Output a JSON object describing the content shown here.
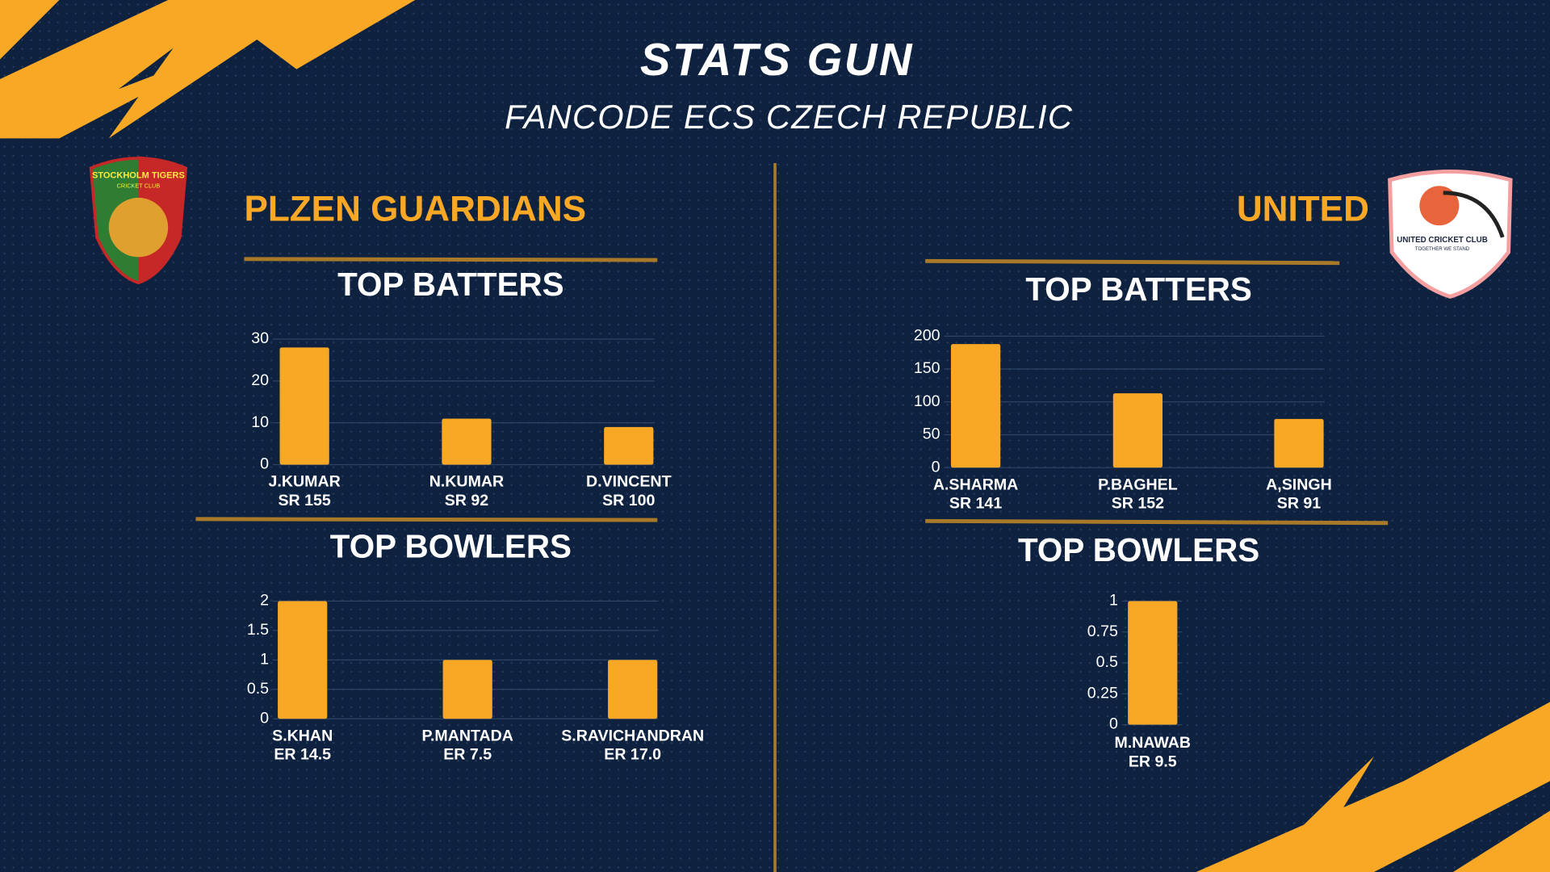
{
  "title": "STATS GUN",
  "subtitle": "FANCODE ECS CZECH REPUBLIC",
  "teams": [
    {
      "name": "PLZEN GUARDIANS",
      "logo_text": [
        "STOCKHOLM TIGERS",
        "CRICKET CLUB"
      ]
    },
    {
      "name": "UNITED",
      "logo_text": [
        "UNITED CRICKET CLUB",
        "TOGETHER WE STAND"
      ]
    }
  ],
  "chart_data": [
    {
      "type": "bar",
      "title": "TOP BATTERS",
      "categories": [
        "J.KUMAR",
        "N.KUMAR",
        "D.VINCENT"
      ],
      "category_notes": [
        "SR 155",
        "SR 92",
        "SR 100"
      ],
      "values": [
        28,
        11,
        9
      ],
      "color": "#f9a825",
      "ylim": [
        0,
        30
      ],
      "yticks": [
        0,
        10,
        20,
        30
      ],
      "grid": true
    },
    {
      "type": "bar",
      "title": "TOP BOWLERS",
      "categories": [
        "S.KHAN",
        "P.MANTADA",
        "S.RAVICHANDRAN"
      ],
      "category_notes": [
        "ER 14.5",
        "ER 7.5",
        "ER 17.0"
      ],
      "values": [
        2,
        1,
        1
      ],
      "color": "#f9a825",
      "ylim": [
        0,
        2
      ],
      "yticks": [
        0,
        0.5,
        1,
        1.5,
        2
      ],
      "grid": true
    },
    {
      "type": "bar",
      "title": "TOP BATTERS",
      "categories": [
        "A.SHARMA",
        "P.BAGHEL",
        "A,SINGH"
      ],
      "category_notes": [
        "SR 141",
        "SR 152",
        "SR 91"
      ],
      "values": [
        188,
        113,
        74
      ],
      "color": "#f9a825",
      "ylim": [
        0,
        200
      ],
      "yticks": [
        0,
        50,
        100,
        150,
        200
      ],
      "grid": true
    },
    {
      "type": "bar",
      "title": "TOP BOWLERS",
      "categories": [
        "M.NAWAB"
      ],
      "category_notes": [
        "ER 9.5"
      ],
      "values": [
        1
      ],
      "color": "#f9a825",
      "ylim": [
        0,
        1
      ],
      "yticks": [
        0,
        0.25,
        0.5,
        0.75,
        1
      ],
      "grid": true
    }
  ]
}
